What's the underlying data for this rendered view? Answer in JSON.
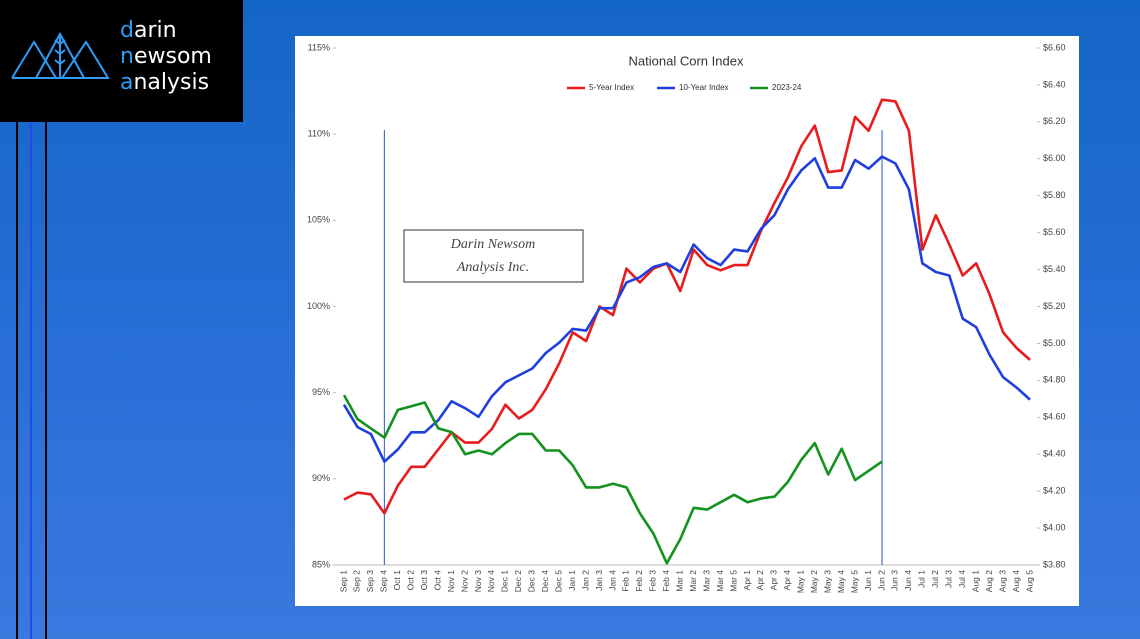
{
  "logo": {
    "lines": [
      "darin",
      "newsom",
      "analysis"
    ]
  },
  "chart_data": {
    "type": "line",
    "title": "National Corn Index",
    "annotation": [
      "Darin Newsom",
      "Analysis Inc."
    ],
    "highlight_categories": [
      3,
      40
    ],
    "grid": false,
    "legend": "top",
    "categories": [
      "Sep 1",
      "Sep 2",
      "Sep 3",
      "Sep 4",
      "Oct 1",
      "Oct 2",
      "Oct 3",
      "Oct 4",
      "Nov 1",
      "Nov 2",
      "Nov 3",
      "Nov 4",
      "Dec 1",
      "Dec 2",
      "Dec 3",
      "Dec 4",
      "Dec 5",
      "Jan 1",
      "Jan 2",
      "Jan 3",
      "Jan 4",
      "Feb 1",
      "Feb 2",
      "Feb 3",
      "Feb 4",
      "Mar 1",
      "Mar 2",
      "Mar 3",
      "Mar 4",
      "Mar 5",
      "Apr 1",
      "Apr 2",
      "Apr 3",
      "Apr 4",
      "May 1",
      "May 2",
      "May 3",
      "May 4",
      "May 5",
      "Jun 1",
      "Jun 2",
      "Jun 3",
      "Jun 4",
      "Jul 1",
      "Jul 2",
      "Jul 3",
      "Jul 4",
      "Aug 1",
      "Aug 2",
      "Aug 3",
      "Aug 4",
      "Aug 5"
    ],
    "ylim": [
      85,
      115
    ],
    "yticks": [
      {
        "value": 85,
        "label": "85%"
      },
      {
        "value": 90,
        "label": "90%"
      },
      {
        "value": 95,
        "label": "95%"
      },
      {
        "value": 100,
        "label": "100%"
      },
      {
        "value": 105,
        "label": "105%"
      },
      {
        "value": 110,
        "label": "110%"
      },
      {
        "value": 115,
        "label": "115%"
      }
    ],
    "y2lim": [
      3.8,
      6.6
    ],
    "y2ticks": [
      {
        "value": 3.8,
        "label": "$3.80"
      },
      {
        "value": 4.0,
        "label": "$4.00"
      },
      {
        "value": 4.2,
        "label": "$4.20"
      },
      {
        "value": 4.4,
        "label": "$4.40"
      },
      {
        "value": 4.6,
        "label": "$4.60"
      },
      {
        "value": 4.8,
        "label": "$4.80"
      },
      {
        "value": 5.0,
        "label": "$5.00"
      },
      {
        "value": 5.2,
        "label": "$5.20"
      },
      {
        "value": 5.4,
        "label": "$5.40"
      },
      {
        "value": 5.6,
        "label": "$5.60"
      },
      {
        "value": 5.8,
        "label": "$5.80"
      },
      {
        "value": 6.0,
        "label": "$6.00"
      },
      {
        "value": 6.2,
        "label": "$6.20"
      },
      {
        "value": 6.4,
        "label": "$6.40"
      },
      {
        "value": 6.6,
        "label": "$6.60"
      }
    ],
    "series": [
      {
        "name": "5-Year Index",
        "color": "#e81c1c",
        "values": [
          88.8,
          89.2,
          89.1,
          88.0,
          89.6,
          90.7,
          90.7,
          91.7,
          92.7,
          92.1,
          92.1,
          92.9,
          94.3,
          93.5,
          94.0,
          95.2,
          96.7,
          98.5,
          98.0,
          100.0,
          99.5,
          102.2,
          101.4,
          102.2,
          102.5,
          100.9,
          103.3,
          102.4,
          102.1,
          102.4,
          102.4,
          104.4,
          106.0,
          107.5,
          109.3,
          110.5,
          107.8,
          107.9,
          111.0,
          110.2,
          112.0,
          111.9,
          110.2,
          103.3,
          105.3,
          103.6,
          101.8,
          102.5,
          100.7,
          98.5,
          97.6,
          96.9
        ]
      },
      {
        "name": "10-Year Index",
        "color": "#1f3fe0",
        "values": [
          94.3,
          93.0,
          92.6,
          91.0,
          91.7,
          92.7,
          92.7,
          93.4,
          94.5,
          94.1,
          93.6,
          94.8,
          95.6,
          96.0,
          96.4,
          97.3,
          97.9,
          98.7,
          98.6,
          99.9,
          99.9,
          101.4,
          101.7,
          102.3,
          102.5,
          102.0,
          103.6,
          102.8,
          102.4,
          103.3,
          103.2,
          104.5,
          105.3,
          106.8,
          107.9,
          108.6,
          106.9,
          106.9,
          108.5,
          108.0,
          108.7,
          108.3,
          106.8,
          102.5,
          102.0,
          101.8,
          99.3,
          98.8,
          97.2,
          95.9,
          95.3,
          94.6
        ]
      },
      {
        "name": "2023-24",
        "color": "#14921e",
        "axis": "y2",
        "values": [
          4.72,
          4.59,
          4.54,
          4.49,
          4.64,
          4.66,
          4.68,
          4.54,
          4.52,
          4.4,
          4.42,
          4.4,
          4.46,
          4.51,
          4.51,
          4.42,
          4.42,
          4.34,
          4.22,
          4.22,
          4.24,
          4.22,
          4.08,
          3.97,
          3.81,
          3.94,
          4.11,
          4.1,
          4.14,
          4.18,
          4.14,
          4.16,
          4.17,
          4.25,
          4.37,
          4.46,
          4.29,
          4.43,
          4.26,
          4.31,
          4.36,
          null,
          null,
          null,
          null,
          null,
          null,
          null,
          null,
          null,
          null,
          null
        ]
      }
    ]
  }
}
